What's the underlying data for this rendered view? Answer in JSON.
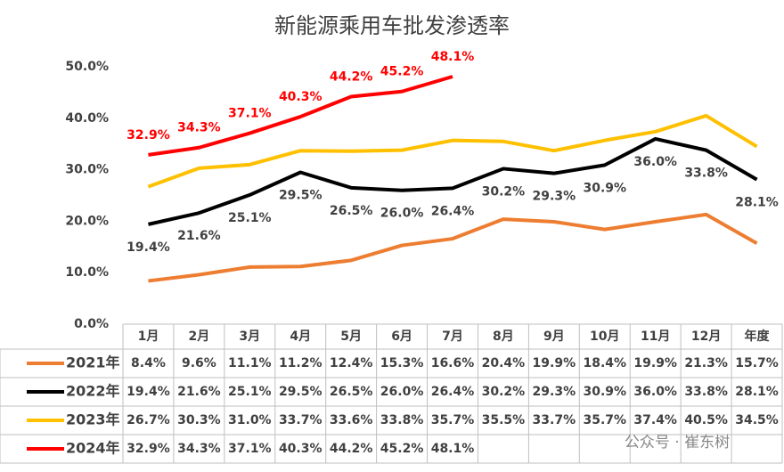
{
  "chart_data": {
    "type": "line",
    "title": "新能源乘用车批发渗透率",
    "categories": [
      "1月",
      "2月",
      "3月",
      "4月",
      "5月",
      "6月",
      "7月",
      "8月",
      "9月",
      "10月",
      "11月",
      "12月",
      "年度"
    ],
    "ylim": [
      0,
      50
    ],
    "yticks": [
      {
        "value": 0,
        "label": "0.0%"
      },
      {
        "value": 10,
        "label": "10.0%"
      },
      {
        "value": 20,
        "label": "20.0%"
      },
      {
        "value": 30,
        "label": "30.0%"
      },
      {
        "value": 40,
        "label": "40.0%"
      },
      {
        "value": 50,
        "label": "50.0%"
      }
    ],
    "grid": false,
    "series": [
      {
        "name": "2021年",
        "color": "#ED7D31",
        "data_labels": false,
        "values": [
          8.4,
          9.6,
          11.1,
          11.2,
          12.4,
          15.3,
          16.6,
          20.4,
          19.9,
          18.4,
          19.9,
          21.3,
          15.7
        ],
        "value_labels": [
          "8.4%",
          "9.6%",
          "11.1%",
          "11.2%",
          "12.4%",
          "15.3%",
          "16.6%",
          "20.4%",
          "19.9%",
          "18.4%",
          "19.9%",
          "21.3%",
          "15.7%"
        ]
      },
      {
        "name": "2022年",
        "color": "#000000",
        "data_labels": true,
        "values": [
          19.4,
          21.6,
          25.1,
          29.5,
          26.5,
          26.0,
          26.4,
          30.2,
          29.3,
          30.9,
          36.0,
          33.8,
          28.1
        ],
        "value_labels": [
          "19.4%",
          "21.6%",
          "25.1%",
          "29.5%",
          "26.5%",
          "26.0%",
          "26.4%",
          "30.2%",
          "29.3%",
          "30.9%",
          "36.0%",
          "33.8%",
          "28.1%"
        ]
      },
      {
        "name": "2023年",
        "color": "#FFC000",
        "data_labels": false,
        "values": [
          26.7,
          30.3,
          31.0,
          33.7,
          33.6,
          33.8,
          35.7,
          35.5,
          33.7,
          35.7,
          37.4,
          40.5,
          34.5
        ],
        "value_labels": [
          "26.7%",
          "30.3%",
          "31.0%",
          "33.7%",
          "33.6%",
          "33.8%",
          "35.7%",
          "35.5%",
          "33.7%",
          "35.7%",
          "37.4%",
          "40.5%",
          "34.5%"
        ]
      },
      {
        "name": "2024年",
        "color": "#FF0000",
        "data_labels": true,
        "values": [
          32.9,
          34.3,
          37.1,
          40.3,
          44.2,
          45.2,
          48.1,
          null,
          null,
          null,
          null,
          null,
          null
        ],
        "value_labels": [
          "32.9%",
          "34.3%",
          "37.1%",
          "40.3%",
          "44.2%",
          "45.2%",
          "48.1%",
          null,
          null,
          null,
          null,
          null,
          null
        ]
      }
    ],
    "watermark": "公众号 · 崔东树"
  }
}
